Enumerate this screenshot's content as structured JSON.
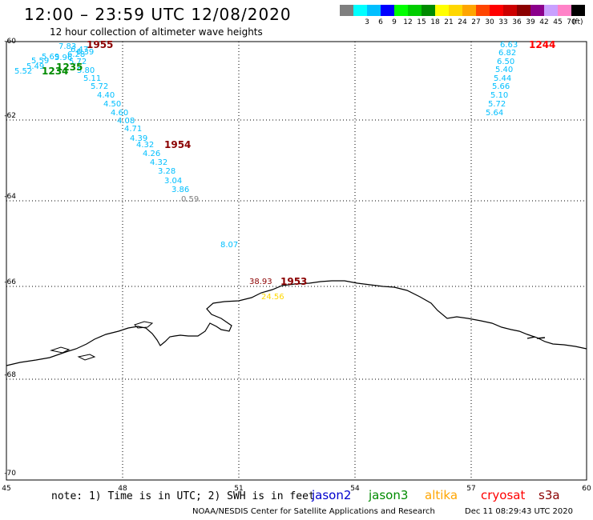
{
  "title": "12:00 – 23:59 UTC 12/08/2020",
  "subtitle": "12 hour collection of altimeter wave heights",
  "legend": {
    "unit": "(ft)",
    "bins": [
      {
        "label": "",
        "color": "#7f7f7f"
      },
      {
        "label": "3",
        "color": "#00ffff"
      },
      {
        "label": "6",
        "color": "#00bfff"
      },
      {
        "label": "9",
        "color": "#0000ff"
      },
      {
        "label": "12",
        "color": "#00ff00"
      },
      {
        "label": "15",
        "color": "#00cd00"
      },
      {
        "label": "18",
        "color": "#008b00"
      },
      {
        "label": "21",
        "color": "#ffff00"
      },
      {
        "label": "24",
        "color": "#ffd700"
      },
      {
        "label": "27",
        "color": "#ffa500"
      },
      {
        "label": "30",
        "color": "#ff4500"
      },
      {
        "label": "33",
        "color": "#ff0000"
      },
      {
        "label": "36",
        "color": "#cd0000"
      },
      {
        "label": "39",
        "color": "#8b0000"
      },
      {
        "label": "42",
        "color": "#8b008b"
      },
      {
        "label": "45",
        "color": "#c9a0ff"
      },
      {
        "label": "70",
        "color": "#ff82c8"
      },
      {
        "label": "",
        "color": "#000000"
      }
    ]
  },
  "axes": {
    "lon_labels": [
      "45",
      "48",
      "51",
      "54",
      "57",
      "60"
    ],
    "lat_labels": [
      "-60",
      "-62",
      "-64",
      "-66",
      "-68",
      "-70"
    ]
  },
  "tracks": [
    {
      "time": "1955",
      "time_color": "#8b0000",
      "values": [
        {
          "v": "7.83",
          "c": "#00bfff"
        },
        {
          "v": "6.47",
          "c": "#00bfff"
        },
        {
          "v": "6.39",
          "c": "#00bfff"
        },
        {
          "v": "6.28",
          "c": "#00bfff"
        },
        {
          "v": "5.96",
          "c": "#00bfff"
        },
        {
          "v": "5.72",
          "c": "#00bfff"
        },
        {
          "v": "5.80",
          "c": "#00bfff"
        },
        {
          "v": "5.11",
          "c": "#00bfff"
        },
        {
          "v": "5.72",
          "c": "#00bfff"
        },
        {
          "v": "4.40",
          "c": "#00bfff"
        },
        {
          "v": "4.50",
          "c": "#00bfff"
        },
        {
          "v": "4.60",
          "c": "#00bfff"
        },
        {
          "v": "4.08",
          "c": "#00bfff"
        },
        {
          "v": "4.71",
          "c": "#00bfff"
        }
      ]
    },
    {
      "time": "1954",
      "time_color": "#8b0000",
      "values": [
        {
          "v": "4.39",
          "c": "#00bfff"
        },
        {
          "v": "4.32",
          "c": "#00bfff"
        },
        {
          "v": "4.26",
          "c": "#00bfff"
        },
        {
          "v": "4.32",
          "c": "#00bfff"
        },
        {
          "v": "3.28",
          "c": "#00bfff"
        },
        {
          "v": "3.04",
          "c": "#00bfff"
        },
        {
          "v": "3.86",
          "c": "#00bfff"
        },
        {
          "v": "0.59",
          "c": "#7f7f7f"
        }
      ]
    },
    {
      "time": "1235",
      "time_color": "#008b00",
      "values": [
        {
          "v": "5.69",
          "c": "#00bfff"
        },
        {
          "v": "5.59",
          "c": "#00bfff"
        }
      ]
    },
    {
      "time": "1234",
      "time_color": "#008b00",
      "values": [
        {
          "v": "5.49",
          "c": "#00bfff"
        },
        {
          "v": "5.52",
          "c": "#00bfff"
        }
      ]
    },
    {
      "time": "1244",
      "time_color": "#ff0000",
      "values": [
        {
          "v": "6.63",
          "c": "#00bfff"
        },
        {
          "v": "6.82",
          "c": "#00bfff"
        },
        {
          "v": "6.50",
          "c": "#00bfff"
        },
        {
          "v": "5.40",
          "c": "#00bfff"
        },
        {
          "v": "5.44",
          "c": "#00bfff"
        },
        {
          "v": "5.66",
          "c": "#00bfff"
        },
        {
          "v": "5.10",
          "c": "#00bfff"
        },
        {
          "v": "5.72",
          "c": "#00bfff"
        },
        {
          "v": "5.64",
          "c": "#00bfff"
        }
      ]
    },
    {
      "time": "1953",
      "time_color": "#8b0000",
      "values": [
        {
          "v": "8.07",
          "c": "#00bfff"
        },
        {
          "v": "38.93",
          "c": "#8b0000"
        },
        {
          "v": "24.56",
          "c": "#ffd700"
        }
      ]
    }
  ],
  "note": "note: 1) Time is in UTC; 2) SWH is in feet",
  "satellites": [
    {
      "name": "jason2",
      "color": "#0000cd"
    },
    {
      "name": "jason3",
      "color": "#008b00"
    },
    {
      "name": "altika",
      "color": "#ffa500"
    },
    {
      "name": "cryosat",
      "color": "#ff0000"
    },
    {
      "name": "s3a",
      "color": "#8b0000"
    }
  ],
  "credit": "NOAA/NESDIS Center for Satellite Applications and Research",
  "stamp": "Dec 11 08:29:43 UTC 2020"
}
